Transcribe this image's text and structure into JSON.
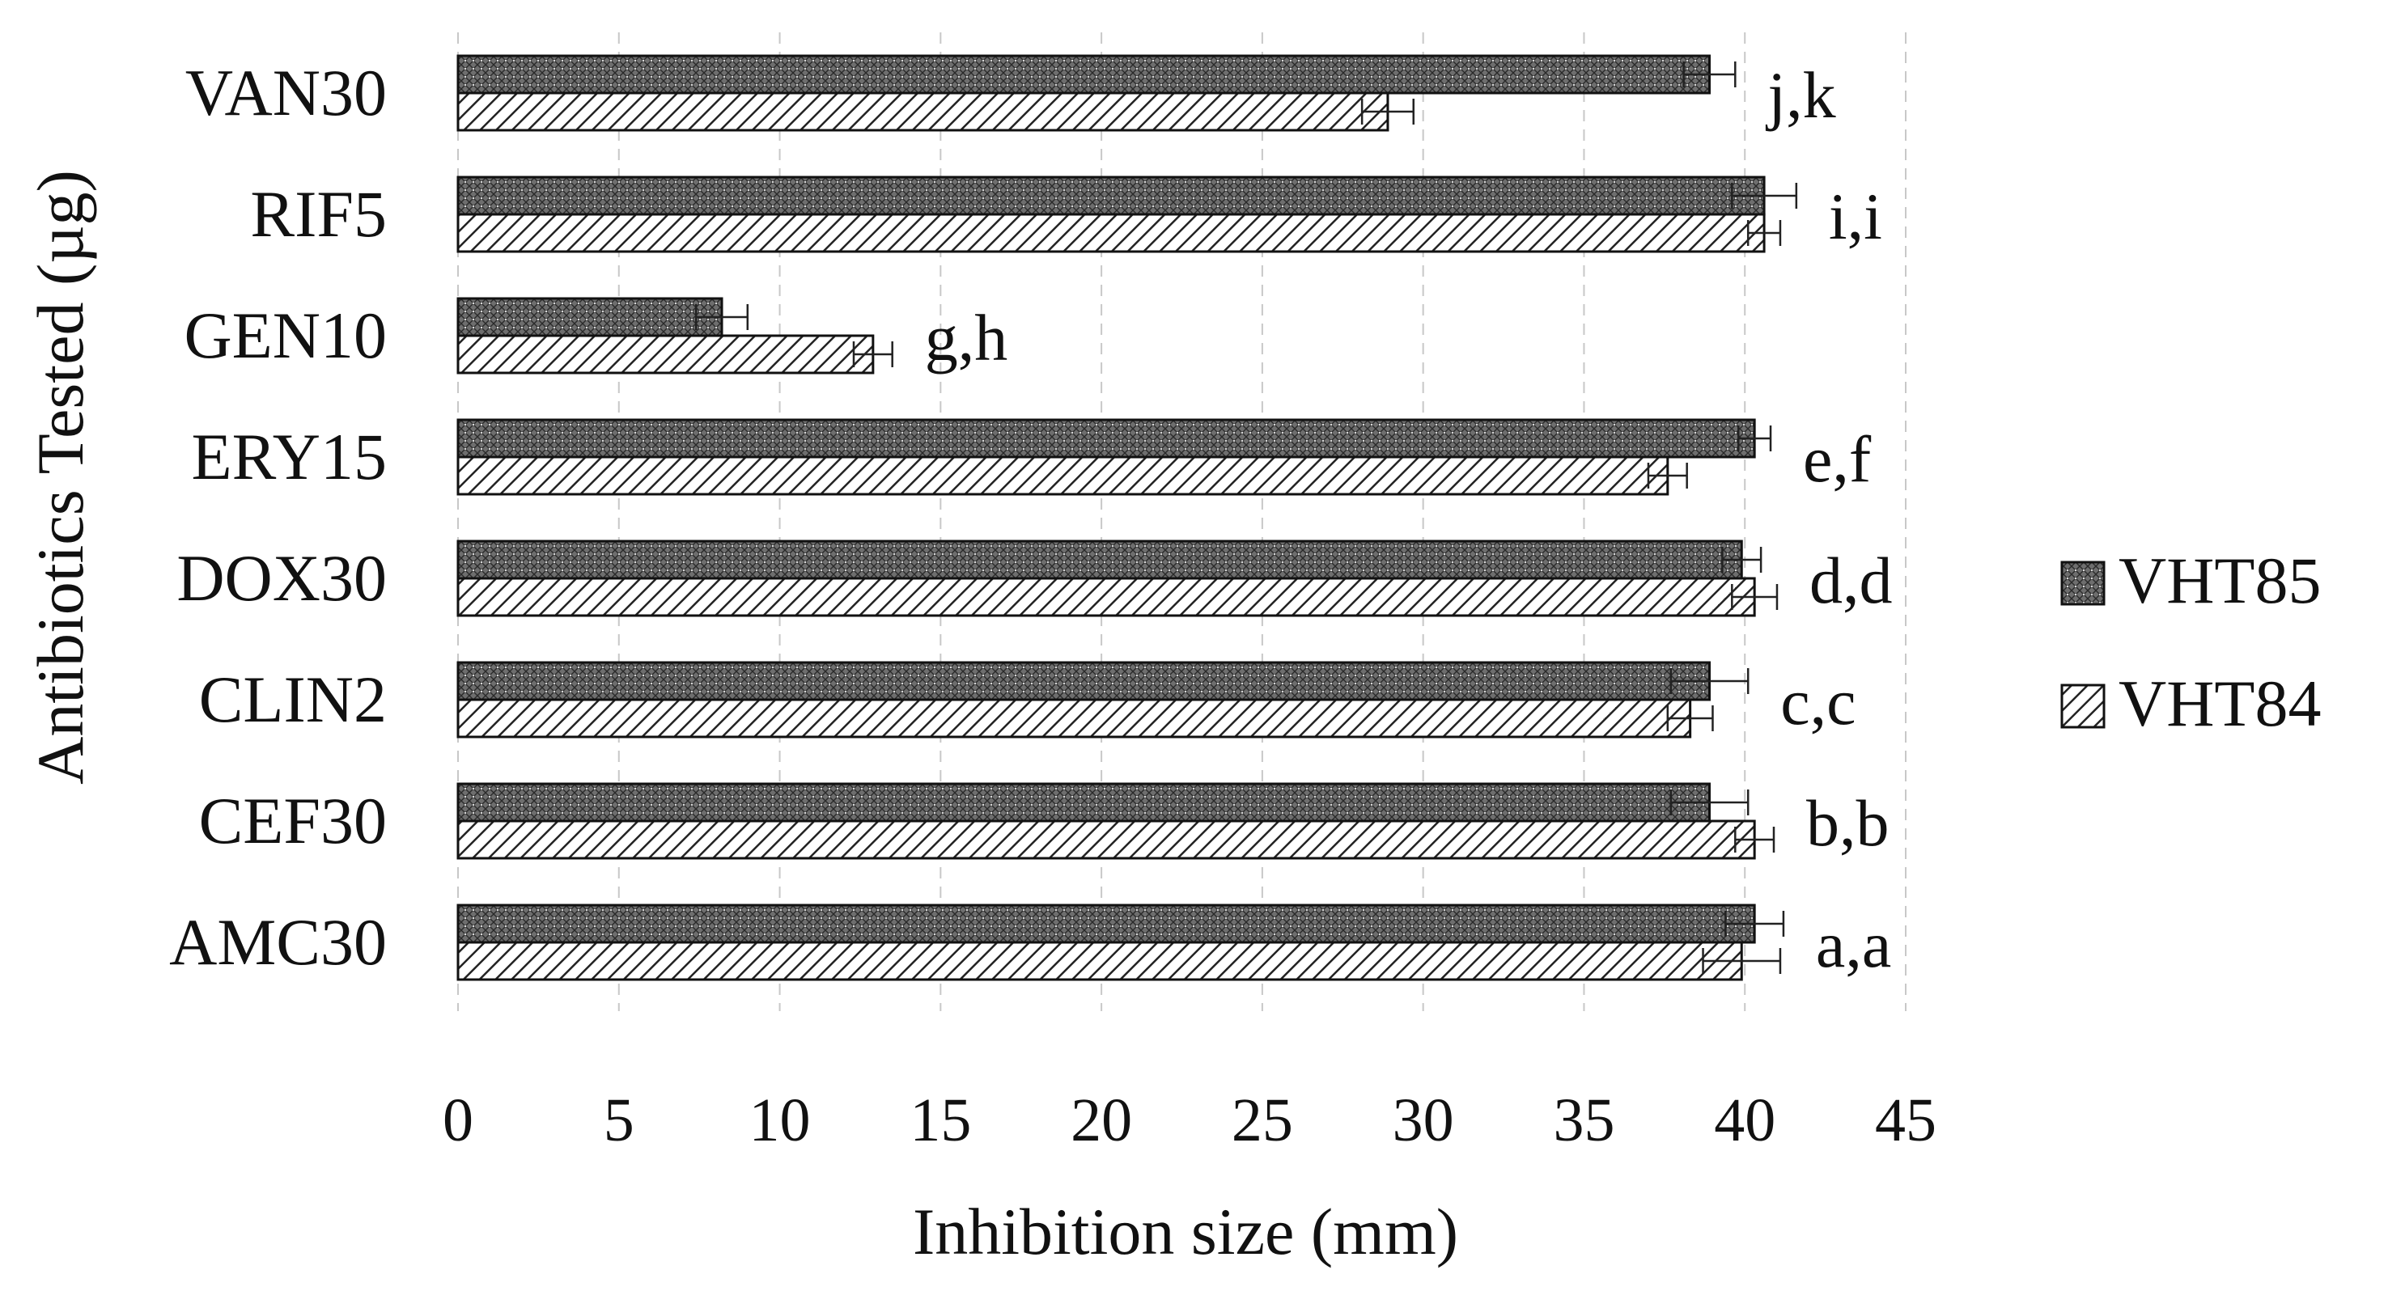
{
  "chart_data": {
    "type": "bar",
    "orientation": "horizontal",
    "xlabel": "Inhibition size (mm)",
    "ylabel": "Antibiotics Tested (µg)",
    "xlim": [
      0,
      45
    ],
    "xticks": [
      0,
      5,
      10,
      15,
      20,
      25,
      30,
      35,
      40,
      45
    ],
    "grid": "vertical dashed",
    "legend_position": "right",
    "categories": [
      "AMC30",
      "CEF30",
      "CLIN2",
      "DOX30",
      "ERY15",
      "GEN10",
      "RIF5",
      "VAN30"
    ],
    "significance_labels": [
      "a,a",
      "b,b",
      "c,c",
      "d,d",
      "e,f",
      "g,h",
      "i,i",
      "j,k"
    ],
    "series": [
      {
        "name": "VHT85",
        "pattern": "crosshatch-dense",
        "values": [
          40.3,
          38.9,
          38.9,
          39.9,
          40.3,
          8.2,
          40.6,
          38.9
        ],
        "errors": [
          0.9,
          1.2,
          1.2,
          0.6,
          0.5,
          0.8,
          1.0,
          0.8
        ]
      },
      {
        "name": "VHT84",
        "pattern": "diagonal-hatch",
        "values": [
          39.9,
          40.3,
          38.3,
          40.3,
          37.6,
          12.9,
          40.6,
          28.9
        ],
        "errors": [
          1.2,
          0.6,
          0.7,
          0.7,
          0.6,
          0.6,
          0.5,
          0.8
        ]
      }
    ]
  }
}
